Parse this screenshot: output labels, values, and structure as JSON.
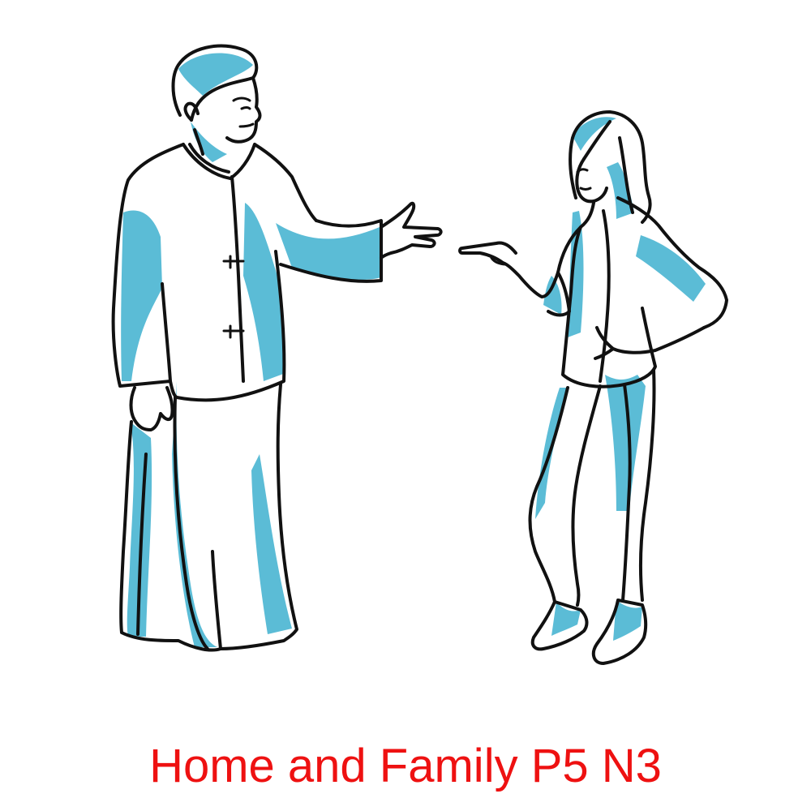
{
  "caption": {
    "text": "Home and Family P5 N3",
    "color": "#ee1111"
  },
  "illustration": {
    "line_color": "#111111",
    "shade_color": "#5bbcd6",
    "figures": [
      "man-figure",
      "woman-figure"
    ]
  }
}
